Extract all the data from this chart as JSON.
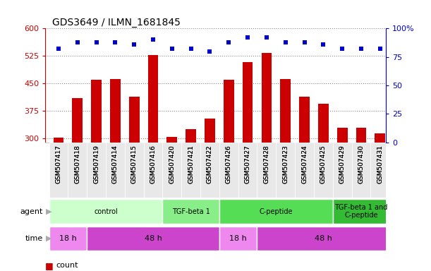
{
  "title": "GDS3649 / ILMN_1681845",
  "samples": [
    "GSM507417",
    "GSM507418",
    "GSM507419",
    "GSM507414",
    "GSM507415",
    "GSM507416",
    "GSM507420",
    "GSM507421",
    "GSM507422",
    "GSM507426",
    "GSM507427",
    "GSM507428",
    "GSM507423",
    "GSM507424",
    "GSM507425",
    "GSM507429",
    "GSM507430",
    "GSM507431"
  ],
  "counts": [
    302,
    410,
    460,
    463,
    415,
    527,
    304,
    325,
    355,
    460,
    508,
    533,
    463,
    415,
    395,
    330,
    330,
    315
  ],
  "percentile_ranks": [
    82,
    88,
    88,
    88,
    86,
    90,
    82,
    82,
    80,
    88,
    92,
    92,
    88,
    88,
    86,
    82,
    82,
    82
  ],
  "ylim_left": [
    290,
    600
  ],
  "ylim_right": [
    0,
    100
  ],
  "yticks_left": [
    300,
    375,
    450,
    525,
    600
  ],
  "yticks_right": [
    0,
    25,
    50,
    75,
    100
  ],
  "bar_color": "#cc0000",
  "dot_color": "#0000cc",
  "agent_groups": [
    {
      "label": "control",
      "start": 0,
      "end": 6,
      "color": "#ccffcc"
    },
    {
      "label": "TGF-beta 1",
      "start": 6,
      "end": 9,
      "color": "#88ee88"
    },
    {
      "label": "C-peptide",
      "start": 9,
      "end": 15,
      "color": "#55dd55"
    },
    {
      "label": "TGF-beta 1 and\nC-peptide",
      "start": 15,
      "end": 18,
      "color": "#33bb33"
    }
  ],
  "time_groups": [
    {
      "label": "18 h",
      "start": 0,
      "end": 2,
      "color": "#ee88ee"
    },
    {
      "label": "48 h",
      "start": 2,
      "end": 9,
      "color": "#cc44cc"
    },
    {
      "label": "18 h",
      "start": 9,
      "end": 11,
      "color": "#ee88ee"
    },
    {
      "label": "48 h",
      "start": 11,
      "end": 18,
      "color": "#cc44cc"
    }
  ],
  "grid_color": "#888888",
  "axis_left_color": "#cc0000",
  "axis_right_color": "#0000cc",
  "bg_color": "#ffffff",
  "plot_bg_color": "#ffffff",
  "xlim": [
    -0.7,
    17.3
  ],
  "bar_width": 0.55
}
